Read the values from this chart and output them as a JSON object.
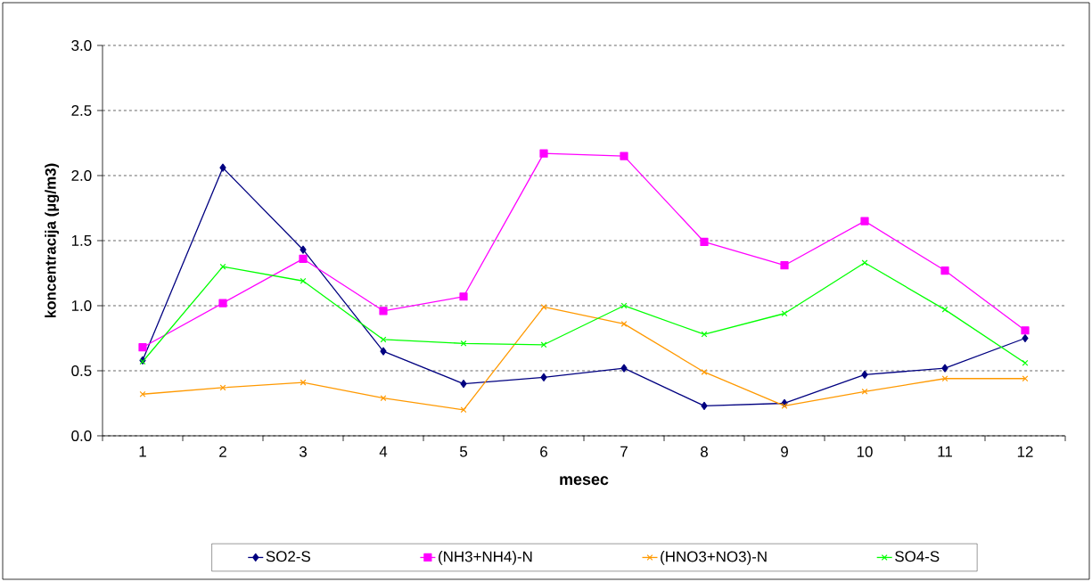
{
  "chart_data": {
    "type": "line",
    "xlabel": "mesec",
    "ylabel": "koncentracija (µg/m3)",
    "categories": [
      "1",
      "2",
      "3",
      "4",
      "5",
      "6",
      "7",
      "8",
      "9",
      "10",
      "11",
      "12"
    ],
    "series": [
      {
        "name": "SO2-S",
        "color": "#000080",
        "marker": "diamond",
        "values": [
          0.58,
          2.06,
          1.43,
          0.65,
          0.4,
          0.45,
          0.52,
          0.23,
          0.25,
          0.47,
          0.52,
          0.75
        ]
      },
      {
        "name": "(NH3+NH4)-N",
        "color": "#ff00ff",
        "marker": "square",
        "values": [
          0.68,
          1.02,
          1.36,
          0.96,
          1.07,
          2.17,
          2.15,
          1.49,
          1.31,
          1.65,
          1.27,
          0.81
        ]
      },
      {
        "name": "(HNO3+NO3)-N",
        "color": "#ff9900",
        "marker": "cross",
        "values": [
          0.32,
          0.37,
          0.41,
          0.29,
          0.2,
          0.99,
          0.86,
          0.49,
          0.23,
          0.34,
          0.44,
          0.44
        ]
      },
      {
        "name": "SO4-S",
        "color": "#00ff00",
        "marker": "cross",
        "values": [
          0.57,
          1.3,
          1.19,
          0.74,
          0.71,
          0.7,
          1.0,
          0.78,
          0.94,
          1.33,
          0.97,
          0.56
        ]
      }
    ],
    "ylim": [
      0,
      3
    ],
    "yticks": [
      {
        "value": 0,
        "label": "0.0"
      },
      {
        "value": 0.5,
        "label": "0.5"
      },
      {
        "value": 1,
        "label": "1.0"
      },
      {
        "value": 1.5,
        "label": "1.5"
      },
      {
        "value": 2,
        "label": "2.0"
      },
      {
        "value": 2.5,
        "label": "2.5"
      },
      {
        "value": 3,
        "label": "3.0"
      }
    ],
    "grid": "y",
    "legend": "bottom"
  }
}
